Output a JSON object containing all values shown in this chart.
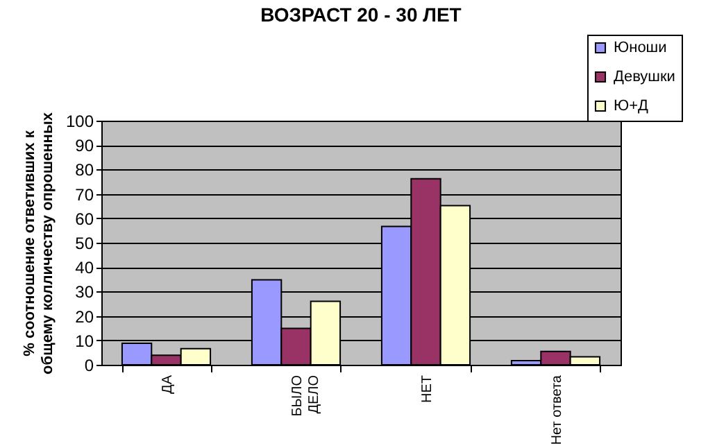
{
  "chart_data": {
    "type": "bar",
    "title": "ВОЗРАСТ 20 - 30 ЛЕТ",
    "ylabel": "% соотношение ответивших к общему колличеству опрошенных",
    "categories": [
      "ДА",
      "БЫЛО ДЕЛО",
      "НЕТ",
      "Нет ответа"
    ],
    "series": [
      {
        "name": "Юноши",
        "color": "#9999ff",
        "values": [
          8.8,
          34.8,
          56.7,
          1.7
        ]
      },
      {
        "name": "Девушки",
        "color": "#993366",
        "values": [
          3.9,
          14.9,
          76.2,
          5.5
        ]
      },
      {
        "name": "Ю+Д",
        "color": "#ffffcc",
        "values": [
          6.6,
          26.0,
          65.2,
          3.3
        ]
      }
    ],
    "ylim": [
      0,
      100
    ],
    "yticks": [
      0,
      10,
      20,
      30,
      40,
      50,
      60,
      70,
      80,
      90,
      100
    ],
    "grid": "y",
    "legend": "top right"
  }
}
